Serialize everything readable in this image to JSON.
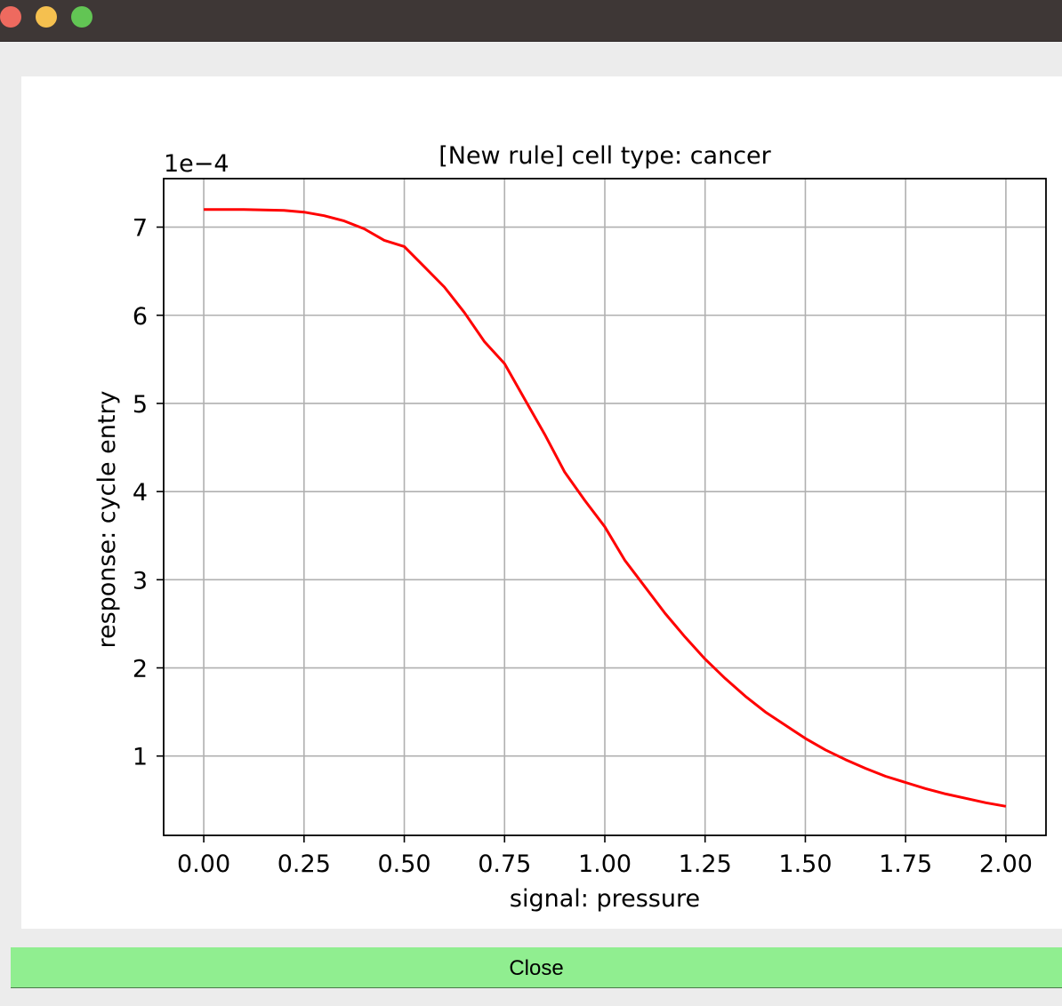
{
  "window": {
    "controls": [
      {
        "name": "close-window",
        "color": "#ee6a5f"
      },
      {
        "name": "minimize-window",
        "color": "#f5c04f"
      },
      {
        "name": "zoom-window",
        "color": "#62c554"
      }
    ]
  },
  "chart_data": {
    "type": "line",
    "title": "[New rule] cell type: cancer",
    "xlabel": "signal: pressure",
    "ylabel": "response: cycle entry",
    "y_offset_label": "1e−4",
    "xlim": [
      -0.1,
      2.1
    ],
    "ylim": [
      0.1,
      7.55
    ],
    "xticks": [
      0.0,
      0.25,
      0.5,
      0.75,
      1.0,
      1.25,
      1.5,
      1.75,
      2.0
    ],
    "xtick_labels": [
      "0.00",
      "0.25",
      "0.50",
      "0.75",
      "1.00",
      "1.25",
      "1.50",
      "1.75",
      "2.00"
    ],
    "yticks": [
      1,
      2,
      3,
      4,
      5,
      6,
      7
    ],
    "ytick_labels": [
      "1",
      "2",
      "3",
      "4",
      "5",
      "6",
      "7"
    ],
    "grid": true,
    "series": [
      {
        "color": "#ff0000",
        "x": [
          0.0,
          0.1,
          0.2,
          0.25,
          0.3,
          0.35,
          0.4,
          0.45,
          0.5,
          0.55,
          0.6,
          0.65,
          0.7,
          0.75,
          0.8,
          0.85,
          0.9,
          0.95,
          1.0,
          1.05,
          1.1,
          1.15,
          1.2,
          1.25,
          1.3,
          1.35,
          1.4,
          1.45,
          1.5,
          1.55,
          1.6,
          1.65,
          1.7,
          1.75,
          1.8,
          1.85,
          1.9,
          1.95,
          2.0
        ],
        "y": [
          7.2,
          7.2,
          7.19,
          7.17,
          7.13,
          7.07,
          6.98,
          6.85,
          6.78,
          6.55,
          6.32,
          6.03,
          5.7,
          5.45,
          5.05,
          4.65,
          4.22,
          3.9,
          3.6,
          3.22,
          2.92,
          2.62,
          2.35,
          2.1,
          1.88,
          1.68,
          1.5,
          1.35,
          1.2,
          1.07,
          0.96,
          0.86,
          0.77,
          0.7,
          0.63,
          0.57,
          0.52,
          0.47,
          0.43
        ]
      }
    ]
  },
  "footer": {
    "close_label": "Close"
  }
}
